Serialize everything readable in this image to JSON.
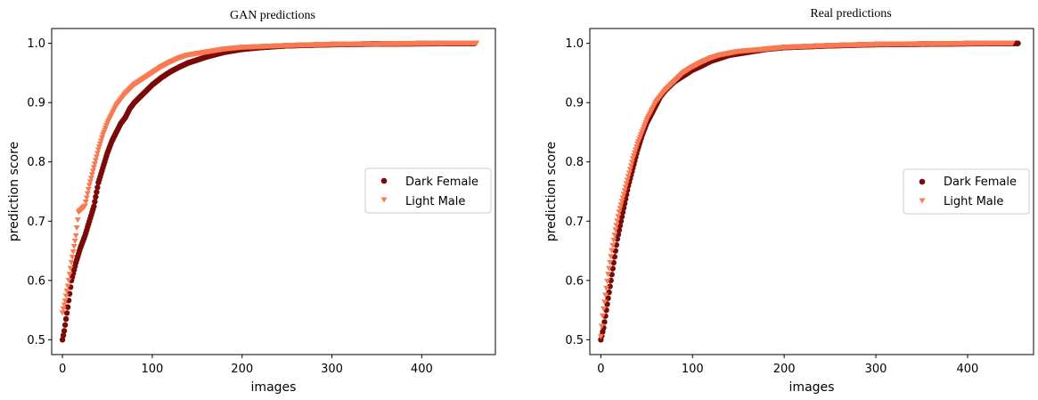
{
  "colors": {
    "dark_female": "#7a0a08",
    "light_male": "#f77b52"
  },
  "chart_data": [
    {
      "type": "scatter",
      "title": "GAN predictions",
      "xlabel": "images",
      "ylabel": "prediction score",
      "xlim": [
        -12,
        482
      ],
      "ylim": [
        0.475,
        1.025
      ],
      "xticks": [
        0,
        100,
        200,
        300,
        400
      ],
      "yticks": [
        0.5,
        0.6,
        0.7,
        0.8,
        0.9,
        1.0
      ],
      "grid": false,
      "legend_position": "center-right",
      "series": [
        {
          "name": "Dark Female",
          "marker": "circle",
          "color": "#7a0a08",
          "n": 460,
          "curve": [
            [
              0,
              0.5
            ],
            [
              2,
              0.515
            ],
            [
              6,
              0.555
            ],
            [
              10,
              0.6
            ],
            [
              15,
              0.63
            ],
            [
              20,
              0.655
            ],
            [
              25,
              0.675
            ],
            [
              30,
              0.7
            ],
            [
              35,
              0.725
            ],
            [
              40,
              0.765
            ],
            [
              45,
              0.79
            ],
            [
              50,
              0.815
            ],
            [
              55,
              0.835
            ],
            [
              60,
              0.85
            ],
            [
              65,
              0.865
            ],
            [
              70,
              0.875
            ],
            [
              75,
              0.89
            ],
            [
              80,
              0.9
            ],
            [
              90,
              0.915
            ],
            [
              100,
              0.93
            ],
            [
              110,
              0.942
            ],
            [
              120,
              0.952
            ],
            [
              130,
              0.96
            ],
            [
              140,
              0.967
            ],
            [
              150,
              0.972
            ],
            [
              160,
              0.977
            ],
            [
              180,
              0.985
            ],
            [
              200,
              0.99
            ],
            [
              220,
              0.993
            ],
            [
              250,
              0.996
            ],
            [
              300,
              0.998
            ],
            [
              350,
              0.999
            ],
            [
              400,
              0.9995
            ],
            [
              460,
              1.0
            ]
          ]
        },
        {
          "name": "Light Male",
          "marker": "triangle-down",
          "color": "#f77b52",
          "n": 462,
          "curve": [
            [
              0,
              0.545
            ],
            [
              3,
              0.565
            ],
            [
              6,
              0.59
            ],
            [
              10,
              0.63
            ],
            [
              15,
              0.675
            ],
            [
              18,
              0.715
            ],
            [
              25,
              0.725
            ],
            [
              30,
              0.76
            ],
            [
              35,
              0.79
            ],
            [
              40,
              0.82
            ],
            [
              45,
              0.845
            ],
            [
              50,
              0.865
            ],
            [
              55,
              0.88
            ],
            [
              60,
              0.895
            ],
            [
              65,
              0.905
            ],
            [
              70,
              0.915
            ],
            [
              80,
              0.93
            ],
            [
              90,
              0.94
            ],
            [
              100,
              0.95
            ],
            [
              110,
              0.96
            ],
            [
              120,
              0.968
            ],
            [
              130,
              0.975
            ],
            [
              140,
              0.98
            ],
            [
              160,
              0.985
            ],
            [
              180,
              0.99
            ],
            [
              200,
              0.993
            ],
            [
              250,
              0.996
            ],
            [
              300,
              0.998
            ],
            [
              400,
              0.9995
            ],
            [
              462,
              1.0
            ]
          ]
        }
      ]
    },
    {
      "type": "scatter",
      "title": "Real predictions",
      "xlabel": "images",
      "ylabel": "prediction score",
      "xlim": [
        -12,
        472
      ],
      "ylim": [
        0.475,
        1.025
      ],
      "xticks": [
        0,
        100,
        200,
        300,
        400
      ],
      "yticks": [
        0.5,
        0.6,
        0.7,
        0.8,
        0.9,
        1.0
      ],
      "grid": false,
      "legend_position": "center-right",
      "series": [
        {
          "name": "Dark Female",
          "marker": "circle",
          "color": "#7a0a08",
          "n": 456,
          "curve": [
            [
              0,
              0.5
            ],
            [
              3,
              0.52
            ],
            [
              6,
              0.55
            ],
            [
              10,
              0.59
            ],
            [
              14,
              0.63
            ],
            [
              18,
              0.67
            ],
            [
              22,
              0.7
            ],
            [
              26,
              0.73
            ],
            [
              30,
              0.76
            ],
            [
              35,
              0.79
            ],
            [
              40,
              0.82
            ],
            [
              45,
              0.845
            ],
            [
              50,
              0.865
            ],
            [
              55,
              0.88
            ],
            [
              60,
              0.895
            ],
            [
              65,
              0.91
            ],
            [
              70,
              0.92
            ],
            [
              80,
              0.935
            ],
            [
              90,
              0.945
            ],
            [
              100,
              0.955
            ],
            [
              110,
              0.962
            ],
            [
              120,
              0.97
            ],
            [
              130,
              0.975
            ],
            [
              140,
              0.98
            ],
            [
              160,
              0.985
            ],
            [
              180,
              0.99
            ],
            [
              200,
              0.993
            ],
            [
              250,
              0.996
            ],
            [
              300,
              0.998
            ],
            [
              400,
              0.9995
            ],
            [
              456,
              1.0
            ]
          ]
        },
        {
          "name": "Light Male",
          "marker": "triangle-down",
          "color": "#f77b52",
          "n": 450,
          "curve": [
            [
              0,
              0.505
            ],
            [
              2,
              0.54
            ],
            [
              5,
              0.575
            ],
            [
              8,
              0.61
            ],
            [
              12,
              0.65
            ],
            [
              16,
              0.685
            ],
            [
              20,
              0.715
            ],
            [
              25,
              0.745
            ],
            [
              30,
              0.775
            ],
            [
              35,
              0.805
            ],
            [
              40,
              0.83
            ],
            [
              45,
              0.85
            ],
            [
              50,
              0.87
            ],
            [
              55,
              0.885
            ],
            [
              60,
              0.9
            ],
            [
              70,
              0.92
            ],
            [
              80,
              0.935
            ],
            [
              90,
              0.95
            ],
            [
              100,
              0.96
            ],
            [
              110,
              0.968
            ],
            [
              120,
              0.975
            ],
            [
              130,
              0.98
            ],
            [
              150,
              0.986
            ],
            [
              180,
              0.99
            ],
            [
              200,
              0.993
            ],
            [
              250,
              0.996
            ],
            [
              300,
              0.998
            ],
            [
              400,
              0.9995
            ],
            [
              450,
              1.0
            ]
          ]
        }
      ]
    }
  ]
}
